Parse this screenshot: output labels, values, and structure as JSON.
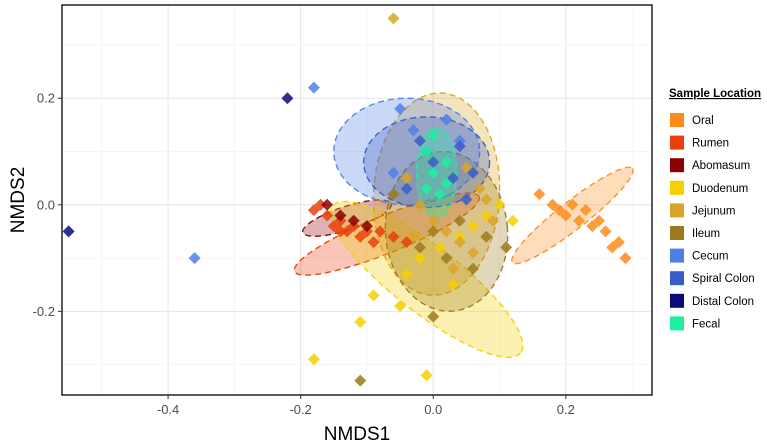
{
  "chart_data": {
    "type": "scatter",
    "xlabel": "NMDS1",
    "ylabel": "NMDS2",
    "xlim": [
      -0.56,
      0.33
    ],
    "ylim": [
      -0.357,
      0.375
    ],
    "xticks": [
      -0.4,
      -0.2,
      0.0,
      0.2
    ],
    "xtick_labels": [
      "-0.4",
      "-0.2",
      "0.0",
      "0.2"
    ],
    "yticks": [
      -0.2,
      0.0,
      0.2
    ],
    "ytick_labels": [
      "-0.2",
      "0.0",
      "0.2"
    ],
    "grid": true,
    "legend": {
      "title": "Sample Location",
      "placement": "right"
    },
    "series": [
      {
        "name": "Oral",
        "color": "#ff8c1a",
        "ellipse": {
          "cx": 0.21,
          "cy": -0.02,
          "rx": 0.115,
          "ry": 0.026,
          "angle": -38
        },
        "points": [
          [
            0.16,
            0.02
          ],
          [
            0.18,
            0.0
          ],
          [
            0.2,
            -0.02
          ],
          [
            0.21,
            0.0
          ],
          [
            0.22,
            -0.03
          ],
          [
            0.23,
            -0.01
          ],
          [
            0.24,
            -0.04
          ],
          [
            0.26,
            -0.05
          ],
          [
            0.28,
            -0.07
          ],
          [
            0.29,
            -0.1
          ],
          [
            0.27,
            -0.08
          ],
          [
            0.19,
            -0.01
          ],
          [
            0.25,
            -0.03
          ]
        ]
      },
      {
        "name": "Rumen",
        "color": "#e8400c",
        "ellipse": {
          "cx": -0.07,
          "cy": -0.055,
          "rx": 0.15,
          "ry": 0.035,
          "angle": -22
        },
        "points": [
          [
            -0.18,
            -0.01
          ],
          [
            -0.16,
            -0.02
          ],
          [
            -0.15,
            -0.04
          ],
          [
            -0.14,
            -0.03
          ],
          [
            -0.13,
            -0.05
          ],
          [
            -0.12,
            -0.04
          ],
          [
            -0.11,
            -0.06
          ],
          [
            -0.1,
            -0.05
          ],
          [
            -0.09,
            -0.07
          ],
          [
            -0.08,
            -0.05
          ],
          [
            -0.06,
            -0.06
          ],
          [
            -0.04,
            -0.07
          ],
          [
            -0.14,
            -0.05
          ],
          [
            -0.17,
            0.0
          ]
        ]
      },
      {
        "name": "Abomasum",
        "color": "#8b0000",
        "ellipse": {
          "cx": -0.13,
          "cy": -0.025,
          "rx": 0.07,
          "ry": 0.022,
          "angle": -18
        },
        "points": [
          [
            -0.16,
            0.0
          ],
          [
            -0.14,
            -0.02
          ],
          [
            -0.12,
            -0.03
          ],
          [
            -0.1,
            -0.04
          ]
        ]
      },
      {
        "name": "Duodenum",
        "color": "#f5d000",
        "ellipse": {
          "cx": -0.01,
          "cy": -0.14,
          "rx": 0.18,
          "ry": 0.062,
          "angle": 38
        },
        "points": [
          [
            -0.18,
            -0.29
          ],
          [
            -0.11,
            -0.22
          ],
          [
            -0.09,
            -0.17
          ],
          [
            -0.04,
            -0.13
          ],
          [
            -0.02,
            -0.1
          ],
          [
            0.01,
            -0.08
          ],
          [
            0.04,
            -0.06
          ],
          [
            0.06,
            -0.04
          ],
          [
            0.08,
            -0.02
          ],
          [
            0.1,
            0.0
          ],
          [
            0.03,
            -0.15
          ],
          [
            -0.01,
            -0.32
          ],
          [
            -0.05,
            -0.19
          ],
          [
            0.0,
            -0.05
          ],
          [
            0.12,
            -0.03
          ]
        ]
      },
      {
        "name": "Jejunum",
        "color": "#d9a428",
        "ellipse": {
          "cx": 0.005,
          "cy": 0.02,
          "rx": 0.095,
          "ry": 0.19,
          "angle": 3
        },
        "points": [
          [
            -0.06,
            0.35
          ],
          [
            -0.04,
            0.05
          ],
          [
            -0.02,
            0.0
          ],
          [
            0.0,
            -0.03
          ],
          [
            0.02,
            -0.05
          ],
          [
            0.04,
            -0.07
          ],
          [
            0.06,
            -0.09
          ],
          [
            0.08,
            0.01
          ],
          [
            0.09,
            -0.03
          ],
          [
            0.05,
            0.07
          ],
          [
            0.03,
            -0.12
          ],
          [
            -0.03,
            -0.06
          ],
          [
            0.07,
            0.03
          ]
        ]
      },
      {
        "name": "Ileum",
        "color": "#9b7a1c",
        "ellipse": {
          "cx": 0.02,
          "cy": -0.05,
          "rx": 0.092,
          "ry": 0.15,
          "angle": -5
        },
        "points": [
          [
            -0.11,
            -0.33
          ],
          [
            -0.02,
            -0.08
          ],
          [
            0.0,
            -0.05
          ],
          [
            0.02,
            -0.1
          ],
          [
            0.04,
            -0.03
          ],
          [
            0.06,
            -0.12
          ],
          [
            0.0,
            -0.21
          ],
          [
            0.11,
            -0.08
          ],
          [
            0.08,
            -0.06
          ],
          [
            -0.06,
            0.02
          ]
        ]
      },
      {
        "name": "Cecum",
        "color": "#4f7fe6",
        "ellipse": {
          "cx": -0.04,
          "cy": 0.1,
          "rx": 0.11,
          "ry": 0.1,
          "angle": 0
        },
        "points": [
          [
            -0.18,
            0.22
          ],
          [
            -0.36,
            -0.1
          ],
          [
            -0.05,
            0.18
          ],
          [
            -0.03,
            0.14
          ],
          [
            -0.01,
            0.1
          ],
          [
            0.02,
            0.16
          ],
          [
            0.04,
            0.12
          ],
          [
            -0.06,
            0.06
          ]
        ]
      },
      {
        "name": "Spiral Colon",
        "color": "#3a5cc9",
        "ellipse": {
          "cx": -0.01,
          "cy": 0.08,
          "rx": 0.095,
          "ry": 0.085,
          "angle": 0
        },
        "points": [
          [
            -0.02,
            0.12
          ],
          [
            0.0,
            0.08
          ],
          [
            0.03,
            0.05
          ],
          [
            0.05,
            0.01
          ],
          [
            0.04,
            0.11
          ],
          [
            -0.04,
            0.03
          ],
          [
            0.06,
            0.06
          ]
        ]
      },
      {
        "name": "Distal Colon",
        "color": "#0a0a7a",
        "ellipse": null,
        "points": [
          [
            -0.55,
            -0.05
          ],
          [
            -0.22,
            0.2
          ]
        ]
      },
      {
        "name": "Fecal",
        "color": "#1ef0a0",
        "ellipse": {
          "cx": 0.005,
          "cy": 0.06,
          "rx": 0.03,
          "ry": 0.085,
          "angle": 0
        },
        "points": [
          [
            -0.01,
            0.1
          ],
          [
            0.0,
            0.06
          ],
          [
            0.01,
            0.02
          ],
          [
            0.02,
            0.08
          ],
          [
            0.0,
            0.13
          ],
          [
            -0.01,
            0.03
          ],
          [
            0.02,
            0.04
          ]
        ]
      }
    ]
  }
}
